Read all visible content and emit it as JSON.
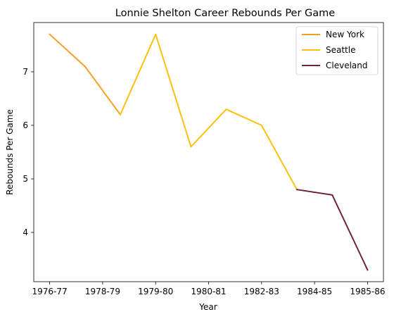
{
  "chart_data": {
    "type": "line",
    "title": "Lonnie Shelton Career Rebounds Per Game",
    "xlabel": "Year",
    "ylabel": "Rebounds Per Game",
    "x_positions": [
      0,
      1,
      2,
      3,
      4,
      5,
      6,
      7,
      8,
      9
    ],
    "x_tick_labels": [
      "1976-77",
      "1978-79",
      "1979-80",
      "1980-81",
      "1982-83",
      "1984-85",
      "1985-86"
    ],
    "x_tick_positions": [
      0,
      1.5,
      3,
      4.5,
      6,
      7.5,
      9
    ],
    "y_ticks": [
      4,
      5,
      6,
      7
    ],
    "xlim": [
      -0.45,
      9.45
    ],
    "ylim": [
      3.08,
      7.92
    ],
    "grid": false,
    "legend_position": "top-right",
    "series": [
      {
        "name": "New York",
        "color": "#f5a022",
        "x": [
          0,
          1,
          2
        ],
        "values": [
          7.7,
          7.1,
          6.2
        ]
      },
      {
        "name": "Seattle",
        "color": "#fbc10b",
        "x": [
          2,
          3,
          4,
          5,
          6,
          7
        ],
        "values": [
          6.2,
          7.7,
          5.6,
          6.3,
          6.0,
          4.8
        ]
      },
      {
        "name": "Cleveland",
        "color": "#6e2340",
        "x": [
          7,
          8,
          9
        ],
        "values": [
          4.8,
          4.7,
          3.3
        ]
      }
    ]
  }
}
